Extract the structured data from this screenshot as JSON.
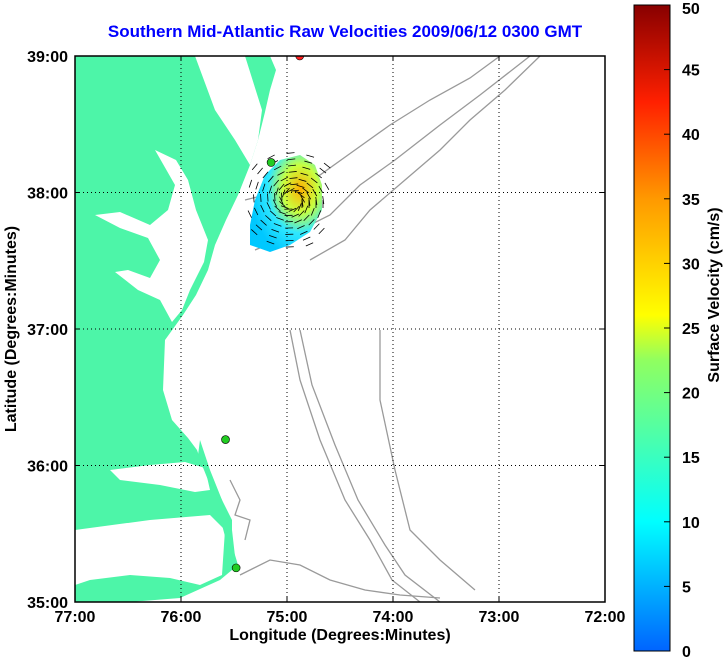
{
  "title": "Southern Mid-Atlantic Raw Velocities 2009/06/12 0300 GMT",
  "x_axis": {
    "label": "Longitude (Degrees:Minutes)",
    "ticks": [
      "77:00",
      "76:00",
      "75:00",
      "74:00",
      "73:00",
      "72:00"
    ],
    "range": [
      -77,
      -72
    ]
  },
  "y_axis": {
    "label": "Latitude (Degrees:Minutes)",
    "ticks": [
      "35:00",
      "36:00",
      "37:00",
      "38:00",
      "39:00"
    ],
    "range": [
      35,
      39
    ]
  },
  "colorbar": {
    "label": "Surface Velocity (cm/s)",
    "ticks": [
      "0",
      "5",
      "10",
      "15",
      "20",
      "25",
      "30",
      "35",
      "40",
      "45",
      "50"
    ],
    "range": [
      0,
      50
    ]
  },
  "colors": {
    "land": "#4df5a8",
    "water": "#ffffff",
    "bathymetry": "#9a9a9a",
    "title": "#0000ff",
    "site_marker": "#22cc22",
    "active_site_marker": "#ff2020"
  },
  "sites": [
    {
      "lon": -74.88,
      "lat": 39.0,
      "active": true
    },
    {
      "lon": -75.15,
      "lat": 38.22,
      "active": false
    },
    {
      "lon": -75.58,
      "lat": 36.19,
      "active": false
    },
    {
      "lon": -75.48,
      "lat": 35.25,
      "active": false
    }
  ]
}
